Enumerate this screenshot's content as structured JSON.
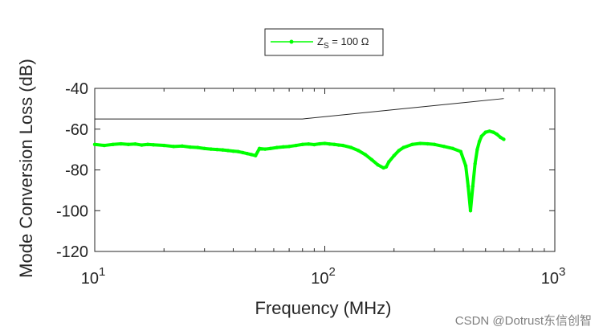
{
  "chart_data": {
    "type": "line",
    "x_scale": "log",
    "xlim": [
      10,
      1000
    ],
    "ylim": [
      -120,
      -40
    ],
    "xlabel": "Frequency (MHz)",
    "ylabel": "Mode Conversion Loss (dB)",
    "x_ticks": [
      {
        "value": 10,
        "base": "10",
        "exp": "1"
      },
      {
        "value": 100,
        "base": "10",
        "exp": "2"
      },
      {
        "value": 1000,
        "base": "10",
        "exp": "3"
      }
    ],
    "y_ticks": [
      {
        "value": -40,
        "label": "-40"
      },
      {
        "value": -60,
        "label": "-60"
      },
      {
        "value": -80,
        "label": "-80"
      },
      {
        "value": -100,
        "label": "-100"
      },
      {
        "value": -120,
        "label": "-120"
      }
    ],
    "grid": false,
    "legend": {
      "placement": "top-center",
      "entry": {
        "main": "Z",
        "sub": "S",
        "rest": " = 100 Ω"
      }
    },
    "series": [
      {
        "name": "ZS = 100 Ω",
        "color": "#00ff00",
        "x": [
          10,
          11,
          12,
          13,
          14,
          15,
          16,
          17,
          18,
          20,
          22,
          24,
          26,
          28,
          30,
          32,
          34,
          36,
          38,
          40,
          42,
          44,
          46,
          48,
          50,
          52,
          55,
          58,
          62,
          66,
          70,
          75,
          80,
          85,
          90,
          95,
          100,
          105,
          110,
          115,
          120,
          130,
          140,
          150,
          160,
          170,
          180,
          185,
          190,
          200,
          210,
          220,
          240,
          260,
          280,
          300,
          330,
          360,
          390,
          410,
          420,
          430,
          440,
          450,
          460,
          470,
          480,
          500,
          520,
          540,
          560,
          580,
          600
        ],
        "y": [
          -67.5,
          -68,
          -67.5,
          -67.2,
          -67.5,
          -67.3,
          -67.8,
          -67.5,
          -67.7,
          -68,
          -68.5,
          -68.3,
          -68.8,
          -69,
          -69.5,
          -69.8,
          -70,
          -70.2,
          -70.5,
          -70.8,
          -71,
          -71.5,
          -72,
          -72.5,
          -73,
          -69.5,
          -69.8,
          -69.5,
          -69,
          -68.7,
          -68.5,
          -68,
          -67.5,
          -67.3,
          -67.6,
          -67.2,
          -67,
          -67.3,
          -67.5,
          -67.8,
          -68,
          -69,
          -70.5,
          -72.5,
          -75,
          -77.5,
          -79,
          -78.5,
          -76,
          -73,
          -70.5,
          -69,
          -67.5,
          -67,
          -67.2,
          -67.5,
          -68.5,
          -69.5,
          -71,
          -78,
          -88,
          -100,
          -88,
          -77,
          -70,
          -66,
          -63.5,
          -61.5,
          -61,
          -61.5,
          -62.5,
          -64,
          -65
        ]
      }
    ],
    "annotations": [
      {
        "type": "limit-line",
        "color": "#262626",
        "x": [
          10,
          80,
          600
        ],
        "y": [
          -55,
          -55,
          -45
        ]
      }
    ]
  },
  "watermark": "CSDN @Dotrust东信创智"
}
